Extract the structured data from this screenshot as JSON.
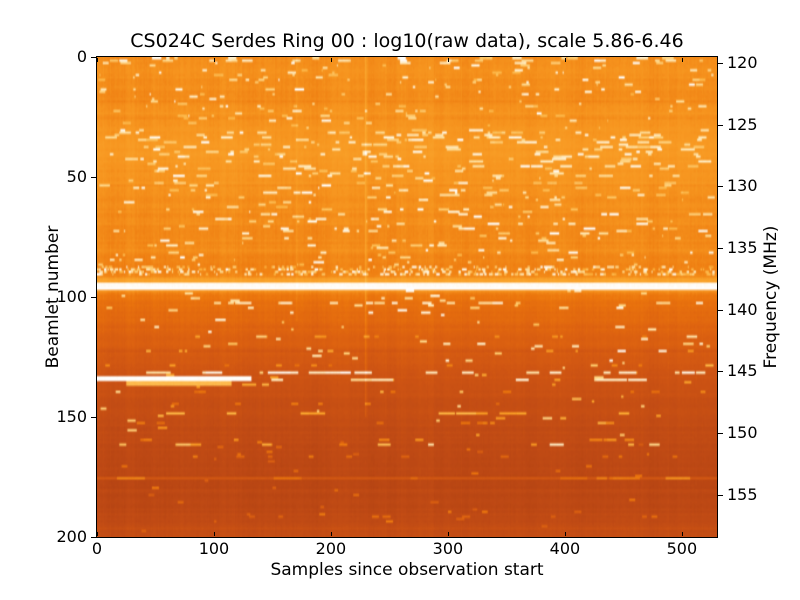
{
  "chart_data": {
    "type": "heatmap",
    "title": "CS024C Serdes Ring 00 : log10(raw data), scale 5.86-6.46",
    "xlabel": "Samples since observation start",
    "ylabel_left": "Beamlet number",
    "ylabel_right": "Frequency (MHz)",
    "x_range": [
      0,
      530
    ],
    "beamlet_range": [
      0,
      200
    ],
    "freq_range_mhz": [
      119.51,
      158.44
    ],
    "scale_range_log10": [
      5.86,
      6.46
    ],
    "xticks": [
      0,
      100,
      200,
      300,
      400,
      500
    ],
    "yticks_left": [
      0,
      50,
      100,
      150,
      200
    ],
    "yticks_right": [
      120,
      125,
      130,
      135,
      140,
      145,
      150,
      155
    ],
    "legend": "none",
    "grid": "off",
    "colormap": [
      [
        0.0,
        "#7E2A0C"
      ],
      [
        0.12,
        "#98360F"
      ],
      [
        0.22,
        "#AE3F12"
      ],
      [
        0.3,
        "#BF4A14"
      ],
      [
        0.38,
        "#CF5513"
      ],
      [
        0.46,
        "#DE6310"
      ],
      [
        0.54,
        "#EC760D"
      ],
      [
        0.62,
        "#F7951F"
      ],
      [
        0.7,
        "#FBA82F"
      ],
      [
        0.78,
        "#FDBA4C"
      ],
      [
        0.86,
        "#FED687"
      ],
      [
        0.93,
        "#FFEBBF"
      ],
      [
        1.0,
        "#FFFFFF"
      ]
    ],
    "row_profile": [
      [
        0,
        0.6
      ],
      [
        6,
        0.615
      ],
      [
        14,
        0.6
      ],
      [
        22,
        0.615
      ],
      [
        32,
        0.635
      ],
      [
        42,
        0.64
      ],
      [
        50,
        0.625
      ],
      [
        58,
        0.605
      ],
      [
        68,
        0.6
      ],
      [
        78,
        0.59
      ],
      [
        88,
        0.58
      ],
      [
        93,
        0.6
      ],
      [
        98,
        0.56
      ],
      [
        101,
        0.52
      ],
      [
        106,
        0.5
      ],
      [
        112,
        0.47
      ],
      [
        118,
        0.445
      ],
      [
        124,
        0.415
      ],
      [
        130,
        0.385
      ],
      [
        136,
        0.365
      ],
      [
        142,
        0.345
      ],
      [
        148,
        0.335
      ],
      [
        154,
        0.32
      ],
      [
        160,
        0.31
      ],
      [
        166,
        0.3
      ],
      [
        172,
        0.295
      ],
      [
        178,
        0.285
      ],
      [
        184,
        0.29
      ],
      [
        190,
        0.3
      ],
      [
        196,
        0.315
      ],
      [
        200,
        0.32
      ]
    ],
    "speckle_bands": [
      {
        "r0": 0,
        "r1": 3,
        "count": 45,
        "len": [
          2,
          10
        ],
        "v": [
          0.8,
          1.0
        ]
      },
      {
        "r0": 3,
        "r1": 30,
        "count": 160,
        "len": [
          1,
          8
        ],
        "v": [
          0.76,
          1.0
        ]
      },
      {
        "r0": 30,
        "r1": 50,
        "count": 230,
        "len": [
          2,
          12
        ],
        "v": [
          0.8,
          1.0
        ]
      },
      {
        "r0": 50,
        "r1": 88,
        "count": 260,
        "len": [
          1,
          10
        ],
        "v": [
          0.77,
          1.0
        ]
      },
      {
        "r0": 97,
        "r1": 128,
        "count": 70,
        "len": [
          2,
          9
        ],
        "v": [
          0.8,
          1.0
        ]
      },
      {
        "r0": 128,
        "r1": 158,
        "count": 45,
        "len": [
          2,
          8
        ],
        "v": [
          0.6,
          0.9
        ]
      },
      {
        "r0": 158,
        "r1": 200,
        "count": 42,
        "len": [
          2,
          7
        ],
        "v": [
          0.42,
          0.56
        ]
      }
    ],
    "features": [
      {
        "kind": "grass",
        "r0": 87.5,
        "r1": 91,
        "count": 430,
        "len": [
          1,
          3
        ],
        "v": [
          0.72,
          1.0
        ]
      },
      {
        "kind": "band",
        "r0": 92.5,
        "r1": 94.0,
        "dv": 0.08
      },
      {
        "kind": "hline",
        "r0": 94.0,
        "r1": 96.2,
        "x0": 0,
        "x1": 530,
        "v": 0.99
      },
      {
        "kind": "band",
        "r0": 96.2,
        "r1": 98.0,
        "dv": 0.05
      },
      {
        "kind": "dashrow",
        "r": 101.6,
        "x0": 0,
        "x1": 530,
        "count": 16,
        "len": [
          4,
          14
        ],
        "v": [
          0.88,
          1.0
        ]
      },
      {
        "kind": "dashrow",
        "r": 116.0,
        "x0": 0,
        "x1": 530,
        "count": 12,
        "len": [
          2,
          6
        ],
        "v": [
          0.55,
          0.68
        ]
      },
      {
        "kind": "dashrow",
        "r": 122.0,
        "x0": 0,
        "x1": 530,
        "count": 8,
        "len": [
          2,
          6
        ],
        "v": [
          0.6,
          0.75
        ]
      },
      {
        "kind": "dashrow",
        "r": 127.8,
        "x0": 0,
        "x1": 530,
        "count": 9,
        "len": [
          2,
          6
        ],
        "v": [
          0.5,
          0.62
        ]
      },
      {
        "kind": "dashrow",
        "r": 130.6,
        "x0": 0,
        "x1": 530,
        "count": 22,
        "len": [
          4,
          18
        ],
        "v": [
          0.88,
          1.0
        ]
      },
      {
        "kind": "hline",
        "r0": 133.6,
        "r1": 134.8,
        "x0": 0,
        "x1": 132,
        "v": 1.0
      },
      {
        "kind": "dashrow",
        "r": 134.2,
        "x0": 140,
        "x1": 530,
        "count": 7,
        "len": [
          10,
          28
        ],
        "v": [
          0.86,
          1.0
        ]
      },
      {
        "kind": "hline",
        "r0": 135.2,
        "r1": 136.5,
        "x0": 25,
        "x1": 115,
        "v": 0.78
      },
      {
        "kind": "dashrow",
        "r": 136.0,
        "x0": 0,
        "x1": 160,
        "count": 5,
        "len": [
          5,
          14
        ],
        "v": [
          0.6,
          0.75
        ]
      },
      {
        "kind": "dashrow",
        "r": 139.0,
        "x0": 0,
        "x1": 530,
        "count": 7,
        "len": [
          3,
          8
        ],
        "v": [
          0.5,
          0.6
        ]
      },
      {
        "kind": "dashrow",
        "r": 143.5,
        "x0": 0,
        "x1": 530,
        "count": 6,
        "len": [
          3,
          8
        ],
        "v": [
          0.48,
          0.58
        ]
      },
      {
        "kind": "dashrow",
        "r": 147.9,
        "x0": 0,
        "x1": 530,
        "count": 11,
        "len": [
          6,
          18
        ],
        "v": [
          0.62,
          0.78
        ]
      },
      {
        "kind": "dashrow",
        "r": 152.2,
        "x0": 0,
        "x1": 530,
        "count": 8,
        "len": [
          3,
          10
        ],
        "v": [
          0.48,
          0.6
        ]
      },
      {
        "kind": "dashrow",
        "r": 158.6,
        "x0": 0,
        "x1": 530,
        "count": 9,
        "len": [
          4,
          12
        ],
        "v": [
          0.5,
          0.64
        ]
      },
      {
        "kind": "dashrow",
        "r": 160.8,
        "x0": 0,
        "x1": 530,
        "count": 13,
        "len": [
          3,
          14
        ],
        "v": [
          0.55,
          0.95
        ]
      },
      {
        "kind": "dashrow",
        "r": 166.2,
        "x0": 0,
        "x1": 530,
        "count": 10,
        "len": [
          3,
          9
        ],
        "v": [
          0.44,
          0.56
        ]
      },
      {
        "kind": "hline",
        "r0": 175.0,
        "r1": 175.9,
        "x0": 0,
        "x1": 530,
        "v": 0.4
      },
      {
        "kind": "dashrow",
        "r": 175.4,
        "x0": 0,
        "x1": 530,
        "count": 12,
        "len": [
          8,
          22
        ],
        "v": [
          0.5,
          0.62
        ]
      },
      {
        "kind": "dashrow",
        "r": 190.5,
        "x0": 0,
        "x1": 530,
        "count": 7,
        "len": [
          3,
          8
        ],
        "v": [
          0.42,
          0.52
        ]
      },
      {
        "kind": "vline",
        "x": 229,
        "r0": 0,
        "r1": 150,
        "dv": 0.07
      },
      {
        "kind": "vline",
        "x": 170,
        "r0": 0,
        "r1": 110,
        "dv": 0.03
      }
    ],
    "column_stripe": {
      "block": 8,
      "block_amp": 0.009,
      "fine_amp": 0.01
    },
    "row_jitter": {
      "amp": 0.022,
      "spike_prob": 0.14,
      "spike_amp": 0.05
    },
    "pixel_noise": 0.018,
    "seed": 1337
  },
  "layout_colors": {
    "background": "#ffffff",
    "text": "#000000",
    "frame": "#000000"
  }
}
